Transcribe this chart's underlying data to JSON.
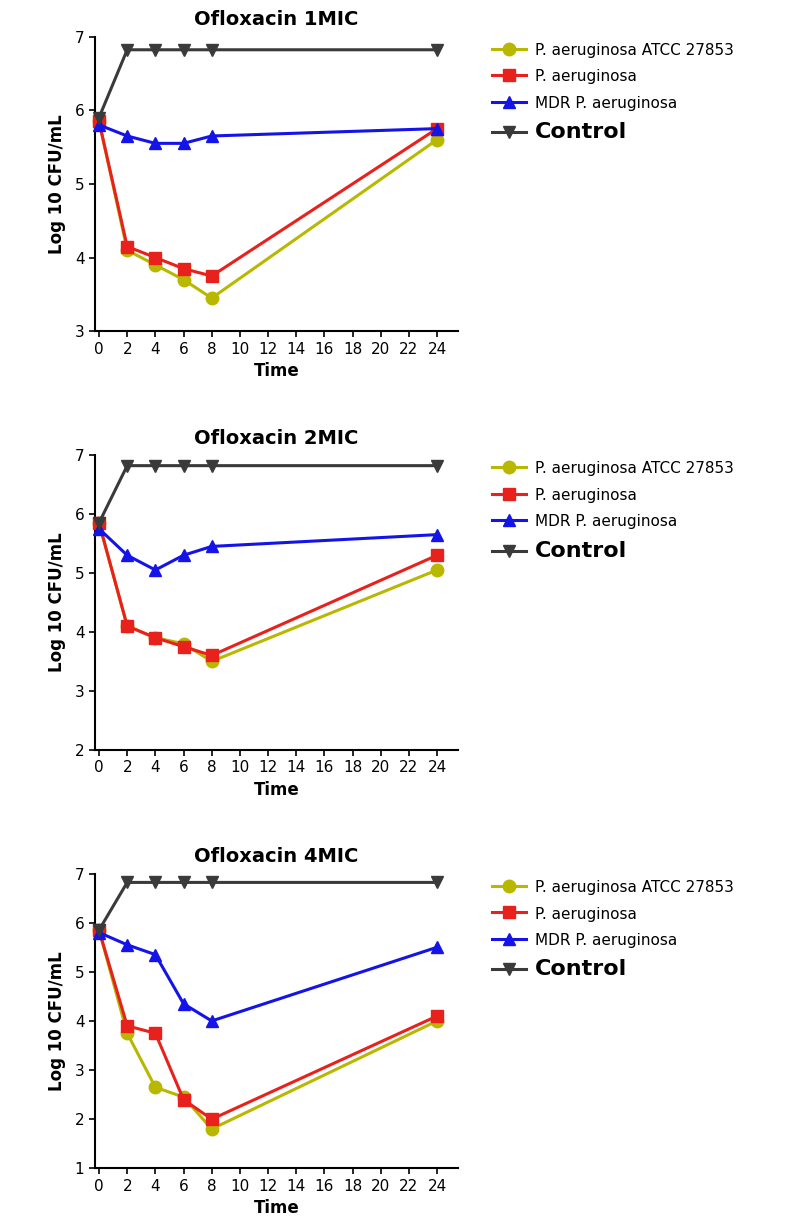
{
  "panels": [
    {
      "title": "Ofloxacin 1MIC",
      "ylim": [
        3,
        7
      ],
      "yticks": [
        3,
        4,
        5,
        6,
        7
      ],
      "series": {
        "atcc": [
          5.85,
          4.1,
          3.9,
          3.7,
          3.45,
          5.6
        ],
        "pa": [
          5.85,
          4.15,
          4.0,
          3.85,
          3.75,
          5.75
        ],
        "mdr": [
          5.8,
          5.65,
          5.55,
          5.55,
          5.65,
          5.75
        ],
        "ctrl": [
          5.9,
          6.82,
          6.82,
          6.82,
          6.82,
          6.82
        ]
      }
    },
    {
      "title": "Ofloxacin 2MIC",
      "ylim": [
        2,
        7
      ],
      "yticks": [
        2,
        3,
        4,
        5,
        6,
        7
      ],
      "series": {
        "atcc": [
          5.85,
          4.1,
          3.9,
          3.8,
          3.5,
          5.05
        ],
        "pa": [
          5.85,
          4.1,
          3.9,
          3.75,
          3.6,
          5.3
        ],
        "mdr": [
          5.75,
          5.3,
          5.05,
          5.3,
          5.45,
          5.65
        ],
        "ctrl": [
          5.85,
          6.82,
          6.82,
          6.82,
          6.82,
          6.82
        ]
      }
    },
    {
      "title": "Ofloxacin 4MIC",
      "ylim": [
        1,
        7
      ],
      "yticks": [
        1,
        2,
        3,
        4,
        5,
        6,
        7
      ],
      "series": {
        "atcc": [
          5.85,
          3.75,
          2.65,
          2.45,
          1.8,
          4.0
        ],
        "pa": [
          5.85,
          3.9,
          3.75,
          2.4,
          2.0,
          4.1
        ],
        "mdr": [
          5.8,
          5.55,
          5.35,
          4.35,
          4.0,
          5.5
        ],
        "ctrl": [
          5.85,
          6.82,
          6.82,
          6.82,
          6.82,
          6.82
        ]
      }
    }
  ],
  "time_points": [
    0,
    2,
    4,
    6,
    8,
    24
  ],
  "xticks": [
    0,
    2,
    4,
    6,
    8,
    10,
    12,
    14,
    16,
    18,
    20,
    22,
    24
  ],
  "colors": {
    "atcc": "#b8b800",
    "pa": "#e8211d",
    "mdr": "#1414e8",
    "ctrl": "#3a3a3a"
  },
  "markers": {
    "atcc": "o",
    "pa": "s",
    "mdr": "^",
    "ctrl": "v"
  },
  "legend_labels": {
    "atcc": "P. aeruginosa ATCC 27853",
    "pa": "P. aeruginosa",
    "mdr": "MDR P. aeruginosa",
    "ctrl": "Control"
  },
  "ylabel": "Log 10 CFU/mL",
  "xlabel": "Time",
  "linewidth": 2.2,
  "markersize": 9,
  "title_fontsize": 14,
  "label_fontsize": 12,
  "tick_fontsize": 11,
  "legend_fontsize": 11,
  "legend_control_fontsize": 16
}
